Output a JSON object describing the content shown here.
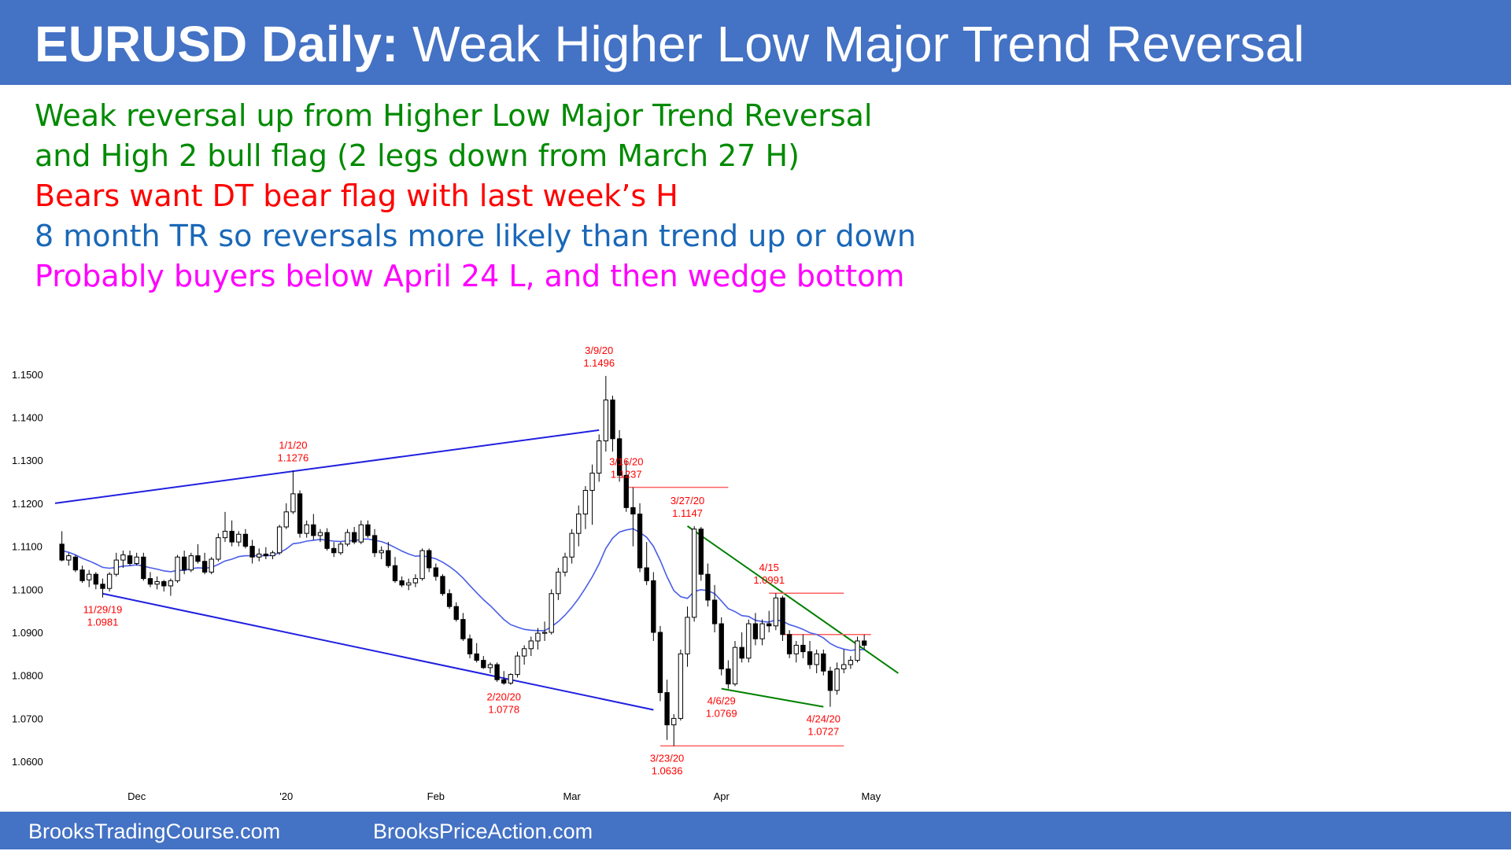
{
  "header": {
    "title_bold": "EURUSD Daily:",
    "title_rest": "Weak Higher Low Major Trend Reversal"
  },
  "notes": [
    {
      "text": "Weak reversal up from Higher Low Major Trend Reversal",
      "color": "#008a00"
    },
    {
      "text": "and High 2 bull flag (2 legs down from March 27 H)",
      "color": "#008a00"
    },
    {
      "text": "Bears want DT bear flag with last week’s H",
      "color": "#ff0000"
    },
    {
      "text": "8 month TR so reversals more likely than trend up or down",
      "color": "#1a68b8"
    },
    {
      "text": "Probably buyers below April 24 L, and then wedge bottom",
      "color": "#ff00ff"
    }
  ],
  "chart_data": {
    "type": "candlestick",
    "title": "",
    "y_ticks": [
      "1.1500",
      "1.1400",
      "1.1300",
      "1.1200",
      "1.1100",
      "1.1000",
      "1.0900",
      "1.0800",
      "1.0700",
      "1.0600"
    ],
    "ylim": [
      1.056,
      1.158
    ],
    "x_ticks": [
      {
        "label": "Dec",
        "index": 11
      },
      {
        "label": "'20",
        "index": 33
      },
      {
        "label": "Feb",
        "index": 55
      },
      {
        "label": "Mar",
        "index": 75
      },
      {
        "label": "Apr",
        "index": 97
      },
      {
        "label": "May",
        "index": 119
      }
    ],
    "xlim": [
      -1,
      124
    ],
    "candles": [
      [
        1.1105,
        1.1135,
        1.1065,
        1.1068
      ],
      [
        1.1068,
        1.1085,
        1.1055,
        1.1078
      ],
      [
        1.1075,
        1.108,
        1.104,
        1.1045
      ],
      [
        1.1045,
        1.1055,
        1.1015,
        1.102
      ],
      [
        1.1022,
        1.1045,
        1.1005,
        1.1035
      ],
      [
        1.1035,
        1.104,
        1.1,
        1.1012
      ],
      [
        1.1012,
        1.1025,
        1.0981,
        1.1002
      ],
      [
        1.1002,
        1.104,
        1.0995,
        1.1035
      ],
      [
        1.1035,
        1.1085,
        1.103,
        1.1068
      ],
      [
        1.1068,
        1.109,
        1.105,
        1.108
      ],
      [
        1.1078,
        1.109,
        1.1055,
        1.106
      ],
      [
        1.106,
        1.1085,
        1.1055,
        1.1075
      ],
      [
        1.1075,
        1.1085,
        1.102,
        1.1025
      ],
      [
        1.1025,
        1.104,
        1.1005,
        1.1012
      ],
      [
        1.1012,
        1.103,
        1.1,
        1.1018
      ],
      [
        1.1018,
        1.1022,
        1.0995,
        1.1008
      ],
      [
        1.1008,
        1.1025,
        1.0985,
        1.102
      ],
      [
        1.102,
        1.108,
        1.1015,
        1.1075
      ],
      [
        1.1075,
        1.109,
        1.1035,
        1.1045
      ],
      [
        1.1045,
        1.1085,
        1.104,
        1.1078
      ],
      [
        1.1078,
        1.1105,
        1.106,
        1.1065
      ],
      [
        1.1065,
        1.1085,
        1.1035,
        1.104
      ],
      [
        1.104,
        1.1075,
        1.1035,
        1.107
      ],
      [
        1.107,
        1.113,
        1.1065,
        1.112
      ],
      [
        1.112,
        1.118,
        1.111,
        1.1135
      ],
      [
        1.1135,
        1.116,
        1.11,
        1.111
      ],
      [
        1.111,
        1.1135,
        1.11,
        1.1128
      ],
      [
        1.1128,
        1.114,
        1.1095,
        1.11
      ],
      [
        1.11,
        1.1115,
        1.106,
        1.1075
      ],
      [
        1.1075,
        1.1095,
        1.1065,
        1.1082
      ],
      [
        1.1082,
        1.1098,
        1.107,
        1.1078
      ],
      [
        1.1078,
        1.109,
        1.107,
        1.1085
      ],
      [
        1.1085,
        1.115,
        1.108,
        1.1145
      ],
      [
        1.1145,
        1.12,
        1.114,
        1.118
      ],
      [
        1.118,
        1.1276,
        1.1175,
        1.1222
      ],
      [
        1.1222,
        1.123,
        1.112,
        1.113
      ],
      [
        1.113,
        1.116,
        1.112,
        1.115
      ],
      [
        1.115,
        1.1175,
        1.1115,
        1.1125
      ],
      [
        1.1125,
        1.114,
        1.111,
        1.1132
      ],
      [
        1.1132,
        1.1142,
        1.109,
        1.1095
      ],
      [
        1.1095,
        1.111,
        1.1075,
        1.1085
      ],
      [
        1.1085,
        1.111,
        1.108,
        1.1105
      ],
      [
        1.1105,
        1.114,
        1.11,
        1.1132
      ],
      [
        1.1132,
        1.1145,
        1.1105,
        1.111
      ],
      [
        1.111,
        1.116,
        1.1105,
        1.115
      ],
      [
        1.115,
        1.116,
        1.112,
        1.1125
      ],
      [
        1.1125,
        1.114,
        1.1075,
        1.1085
      ],
      [
        1.1085,
        1.11,
        1.107,
        1.109
      ],
      [
        1.109,
        1.111,
        1.105,
        1.1055
      ],
      [
        1.1055,
        1.1075,
        1.1015,
        1.102
      ],
      [
        1.102,
        1.103,
        1.1005,
        1.101
      ],
      [
        1.101,
        1.1025,
        1.0998,
        1.1015
      ],
      [
        1.1015,
        1.1035,
        1.1005,
        1.1025
      ],
      [
        1.1025,
        1.1095,
        1.102,
        1.109
      ],
      [
        1.109,
        1.1095,
        1.104,
        1.105
      ],
      [
        1.105,
        1.106,
        1.102,
        1.103
      ],
      [
        1.103,
        1.1035,
        1.0985,
        1.099
      ],
      [
        1.099,
        1.1,
        1.0955,
        1.096
      ],
      [
        1.096,
        1.097,
        1.0925,
        1.093
      ],
      [
        1.093,
        1.0945,
        1.088,
        1.0885
      ],
      [
        1.0885,
        1.0895,
        1.084,
        1.085
      ],
      [
        1.085,
        1.0875,
        1.083,
        1.0835
      ],
      [
        1.0835,
        1.0845,
        1.0815,
        1.0818
      ],
      [
        1.0818,
        1.083,
        1.0805,
        1.0825
      ],
      [
        1.0825,
        1.083,
        1.0785,
        1.079
      ],
      [
        1.079,
        1.081,
        1.0778,
        1.0782
      ],
      [
        1.0782,
        1.0805,
        1.0778,
        1.0802
      ],
      [
        1.0802,
        1.0855,
        1.0795,
        1.0845
      ],
      [
        1.0845,
        1.087,
        1.0825,
        1.0862
      ],
      [
        1.0862,
        1.089,
        1.0845,
        1.088
      ],
      [
        1.088,
        1.091,
        1.086,
        1.0898
      ],
      [
        1.0898,
        1.0925,
        1.088,
        1.09
      ],
      [
        1.09,
        1.1,
        1.0895,
        1.099
      ],
      [
        1.099,
        1.105,
        1.0975,
        1.104
      ],
      [
        1.104,
        1.1085,
        1.103,
        1.1075
      ],
      [
        1.1075,
        1.114,
        1.106,
        1.113
      ],
      [
        1.113,
        1.1195,
        1.11,
        1.1175
      ],
      [
        1.1175,
        1.124,
        1.114,
        1.123
      ],
      [
        1.123,
        1.129,
        1.115,
        1.127
      ],
      [
        1.127,
        1.136,
        1.125,
        1.1345
      ],
      [
        1.1345,
        1.1496,
        1.132,
        1.144
      ],
      [
        1.144,
        1.145,
        1.132,
        1.135
      ],
      [
        1.135,
        1.137,
        1.125,
        1.1265
      ],
      [
        1.1265,
        1.13,
        1.118,
        1.119
      ],
      [
        1.119,
        1.1237,
        1.11,
        1.1175
      ],
      [
        1.1175,
        1.12,
        1.104,
        1.105
      ],
      [
        1.105,
        1.111,
        1.101,
        1.102
      ],
      [
        1.102,
        1.104,
        1.088,
        1.09
      ],
      [
        1.09,
        1.0915,
        1.074,
        1.076
      ],
      [
        1.076,
        1.079,
        1.065,
        1.0685
      ],
      [
        1.0685,
        1.071,
        1.0636,
        1.07
      ],
      [
        1.07,
        1.086,
        1.0695,
        1.085
      ],
      [
        1.085,
        1.096,
        1.082,
        1.0935
      ],
      [
        1.0935,
        1.1147,
        1.0925,
        1.114
      ],
      [
        1.114,
        1.1145,
        1.102,
        1.1035
      ],
      [
        1.1035,
        1.106,
        1.096,
        1.0975
      ],
      [
        1.0975,
        1.101,
        1.09,
        1.092
      ],
      [
        1.092,
        1.0935,
        1.08,
        1.0815
      ],
      [
        1.0815,
        1.0835,
        1.0769,
        1.078
      ],
      [
        1.078,
        1.088,
        1.0775,
        1.0865
      ],
      [
        1.0865,
        1.09,
        1.083,
        1.084
      ],
      [
        1.084,
        1.093,
        1.083,
        1.092
      ],
      [
        1.092,
        1.0945,
        1.087,
        1.0885
      ],
      [
        1.0885,
        1.093,
        1.087,
        1.092
      ],
      [
        1.092,
        1.095,
        1.09,
        1.0915
      ],
      [
        1.0915,
        1.0991,
        1.0905,
        1.098
      ],
      [
        1.098,
        1.0985,
        1.088,
        1.0895
      ],
      [
        1.0895,
        1.0905,
        1.084,
        1.085
      ],
      [
        1.085,
        1.088,
        1.083,
        1.087
      ],
      [
        1.087,
        1.0895,
        1.084,
        1.0855
      ],
      [
        1.0855,
        1.088,
        1.0815,
        1.0825
      ],
      [
        1.0825,
        1.086,
        1.0805,
        1.085
      ],
      [
        1.085,
        1.086,
        1.08,
        1.081
      ],
      [
        1.081,
        1.082,
        1.0727,
        1.0765
      ],
      [
        1.0765,
        1.083,
        1.0755,
        1.0815
      ],
      [
        1.0815,
        1.086,
        1.0805,
        1.0825
      ],
      [
        1.0825,
        1.0845,
        1.0815,
        1.0835
      ],
      [
        1.0835,
        1.089,
        1.083,
        1.088
      ],
      [
        1.088,
        1.0895,
        1.086,
        1.087
      ]
    ],
    "ema20": [
      1.109,
      1.1086,
      1.108,
      1.1072,
      1.1066,
      1.1059,
      1.1051,
      1.1049,
      1.1051,
      1.1054,
      1.1055,
      1.1057,
      1.1054,
      1.105,
      1.1047,
      1.1043,
      1.1041,
      1.1044,
      1.1044,
      1.1048,
      1.105,
      1.1049,
      1.1051,
      1.1058,
      1.1066,
      1.107,
      1.1076,
      1.1078,
      1.1078,
      1.1078,
      1.1078,
      1.1079,
      1.1085,
      1.1094,
      1.1106,
      1.1108,
      1.1112,
      1.1114,
      1.1116,
      1.1114,
      1.1112,
      1.1111,
      1.1113,
      1.1113,
      1.1116,
      1.1117,
      1.1114,
      1.1111,
      1.1105,
      1.1097,
      1.1089,
      1.1082,
      1.1077,
      1.1078,
      1.1075,
      1.1071,
      1.1063,
      1.1053,
      1.1041,
      1.1026,
      1.1009,
      1.0992,
      1.0976,
      1.0962,
      1.0946,
      1.093,
      1.0918,
      1.0912,
      1.0907,
      1.0905,
      1.0904,
      1.0904,
      1.0913,
      1.0925,
      1.094,
      1.0958,
      1.0979,
      1.1003,
      1.1029,
      1.1059,
      1.1095,
      1.1119,
      1.1133,
      1.1138,
      1.1141,
      1.1132,
      1.1121,
      1.11,
      1.1067,
      1.1029,
      1.0997,
      1.0983,
      1.0979,
      1.0995,
      1.0999,
      1.0997,
      1.099,
      1.0973,
      1.0955,
      1.0948,
      1.0939,
      1.0937,
      1.0928,
      1.0925,
      1.0924,
      1.0929,
      1.0926,
      1.0918,
      1.0913,
      1.0907,
      1.0899,
      1.0895,
      1.0887,
      1.0874,
      1.0866,
      1.0861,
      1.0858,
      1.086,
      1.086
    ],
    "annotations": [
      {
        "date": "11/29/19",
        "price": "1.0981",
        "index": 6,
        "value": 1.0981,
        "pos": "below"
      },
      {
        "date": "1/1/20",
        "price": "1.1276",
        "index": 34,
        "value": 1.1276,
        "pos": "above"
      },
      {
        "date": "2/20/20",
        "price": "1.0778",
        "index": 65,
        "value": 1.0778,
        "pos": "below"
      },
      {
        "date": "3/9/20",
        "price": "1.1496",
        "index": 79,
        "value": 1.1496,
        "pos": "above"
      },
      {
        "date": "3/16/20",
        "price": "1.1237",
        "index": 83,
        "value": 1.1237,
        "pos": "above"
      },
      {
        "date": "3/23/20",
        "price": "1.0636",
        "index": 89,
        "value": 1.0636,
        "pos": "below"
      },
      {
        "date": "3/27/20",
        "price": "1.1147",
        "index": 92,
        "value": 1.1147,
        "pos": "above"
      },
      {
        "date": "4/6/29",
        "price": "1.0769",
        "index": 97,
        "value": 1.0769,
        "pos": "below"
      },
      {
        "date": "4/15",
        "price": "1.0991",
        "index": 104,
        "value": 1.0991,
        "pos": "above"
      },
      {
        "date": "4/24/20",
        "price": "1.0727",
        "index": 112,
        "value": 1.0727,
        "pos": "below"
      }
    ],
    "trendlines": [
      {
        "name": "upper-range-line",
        "color": "#2020e0",
        "x1": -1,
        "y1": 1.12,
        "x2": 79,
        "y2": 1.137
      },
      {
        "name": "lower-range-line",
        "color": "#2020e0",
        "x1": 6,
        "y1": 1.099,
        "x2": 87,
        "y2": 1.072
      },
      {
        "name": "bear-trendline",
        "color": "#008000",
        "x1": 92,
        "y1": 1.1147,
        "x2": 123,
        "y2": 1.0805
      },
      {
        "name": "wedge-bottom-line",
        "color": "#008000",
        "x1": 97,
        "y1": 1.0769,
        "x2": 112,
        "y2": 1.0727
      }
    ],
    "levels": [
      {
        "name": "march-16-high-line",
        "color": "#ff6060",
        "x1": 83,
        "x2": 98,
        "y": 1.1237
      },
      {
        "name": "march-23-low-line",
        "color": "#ff6060",
        "x1": 88,
        "x2": 115,
        "y": 1.0636
      },
      {
        "name": "april-15-high-line",
        "color": "#ff6060",
        "x1": 104,
        "x2": 115,
        "y": 1.0991
      },
      {
        "name": "last-week-high-line",
        "color": "#ff6060",
        "x1": 106,
        "x2": 119,
        "y": 1.0895
      }
    ],
    "colors": {
      "bull_candle": "#ffffff",
      "bear_candle": "#000000",
      "ema": "#4a5ee8",
      "annotation": "#ff0000"
    }
  },
  "footer": {
    "left": "BrooksTradingCourse.com",
    "right": "BrooksPriceAction.com"
  }
}
